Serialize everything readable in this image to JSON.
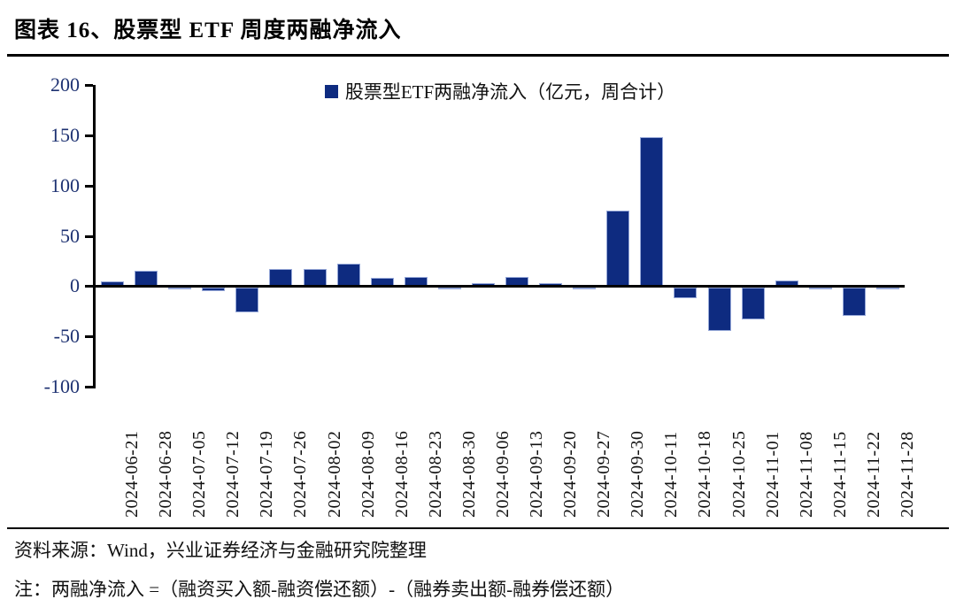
{
  "page": {
    "title": "图表 16、股票型 ETF 周度两融净流入"
  },
  "chart_data": {
    "type": "bar",
    "title": "图表 16、股票型 ETF 周度两融净流入",
    "legend": "股票型ETF两融净流入（亿元，周合计）",
    "legend_position": "top-center",
    "grid": false,
    "ylim": [
      -100,
      200
    ],
    "yticks": [
      200,
      150,
      100,
      50,
      0,
      -50,
      -100
    ],
    "bar_color": "#0e2b80",
    "bar_border_color": "#96a8d8",
    "categories": [
      "2024-06-21",
      "2024-06-28",
      "2024-07-05",
      "2024-07-12",
      "2024-07-19",
      "2024-07-26",
      "2024-08-02",
      "2024-08-09",
      "2024-08-16",
      "2024-08-23",
      "2024-08-30",
      "2024-09-06",
      "2024-09-13",
      "2024-09-20",
      "2024-09-27",
      "2024-09-30",
      "2024-10-11",
      "2024-10-18",
      "2024-10-25",
      "2024-11-01",
      "2024-11-08",
      "2024-11-15",
      "2024-11-22",
      "2024-11-28"
    ],
    "values": [
      5,
      15,
      -2,
      -4,
      -25,
      17,
      17,
      22,
      8,
      9,
      -2,
      3,
      9,
      3,
      -1,
      75,
      148,
      -11,
      -43,
      -32,
      6,
      -1,
      -28,
      -1
    ]
  },
  "footer": {
    "source": "资料来源：Wind，兴业证券经济与金融研究院整理",
    "note": "注：两融净流入 =（融资买入额-融资偿还额）-（融券卖出额-融券偿还额）"
  }
}
